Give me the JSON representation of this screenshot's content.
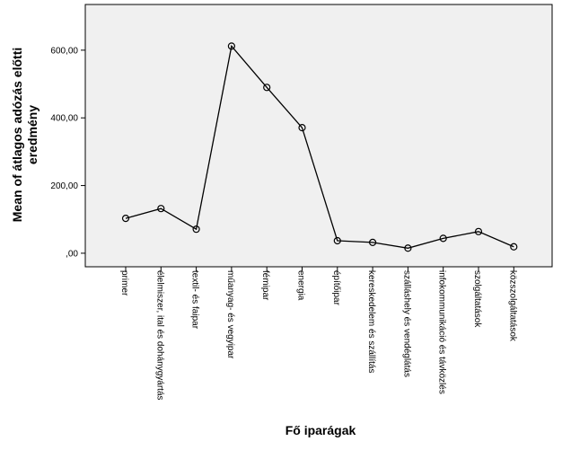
{
  "chart_data": {
    "type": "line",
    "xlabel": "Fő iparágak",
    "ylabel": "Mean of átlagos adózás előtti eredmény",
    "ylabel_lines": [
      "Mean of átlagos adózás előtti",
      "eredmény"
    ],
    "categories": [
      "primer",
      "élelmiszer, ital és dohánygyártás",
      "textil- és faipar",
      "műanyag- és vegyipar",
      "fémipar",
      "energia",
      "építőipar",
      "kereskedelem és szállítás",
      "szálláshely és vendéglátás",
      "infokommunikáció és távközlés",
      "szolgáltatások",
      "közszolgáltatások"
    ],
    "series": [
      {
        "values": [
          103,
          132,
          71,
          612,
          490,
          371,
          37,
          32,
          15,
          44,
          64,
          19
        ]
      }
    ],
    "ylim": [
      -40,
      735
    ],
    "yticks": [
      0,
      200,
      400,
      600
    ],
    "ytick_labels": [
      ",00",
      "200,00",
      "400,00",
      "600,00"
    ],
    "grid": false,
    "marker": "open-circle",
    "colors": {
      "plot_bg": "#f0f0f0",
      "line": "#000000"
    }
  }
}
